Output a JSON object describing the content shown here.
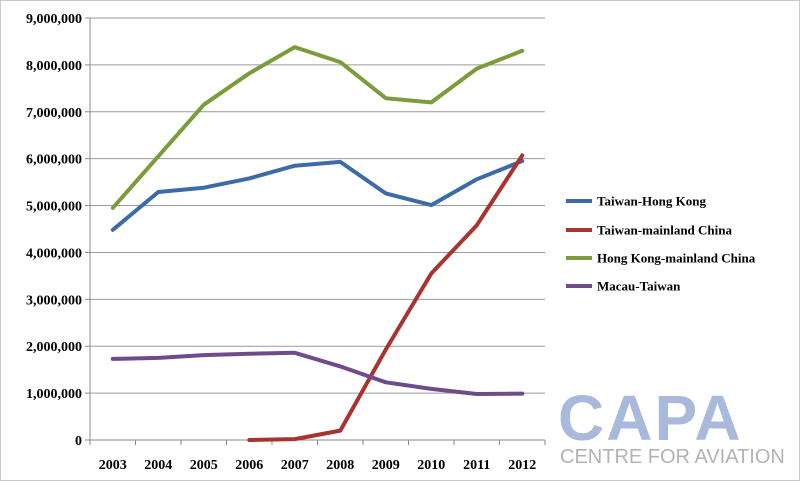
{
  "chart_data": {
    "type": "line",
    "title": "",
    "xlabel": "",
    "ylabel": "",
    "ylim": [
      0,
      9000000
    ],
    "y_ticks": [
      "0",
      "1,000,000",
      "2,000,000",
      "3,000,000",
      "4,000,000",
      "5,000,000",
      "6,000,000",
      "7,000,000",
      "8,000,000",
      "9,000,000"
    ],
    "y_tick_values": [
      0,
      1000000,
      2000000,
      3000000,
      4000000,
      5000000,
      6000000,
      7000000,
      8000000,
      9000000
    ],
    "categories": [
      "2003",
      "2004",
      "2005",
      "2006",
      "2007",
      "2008",
      "2009",
      "2010",
      "2011",
      "2012"
    ],
    "grid": true,
    "legend_position": "right",
    "series": [
      {
        "name": "Taiwan-Hong Kong",
        "color": "#3d6aa8",
        "values": [
          4480000,
          5290000,
          5380000,
          5580000,
          5850000,
          5930000,
          5260000,
          5010000,
          5560000,
          5950000
        ]
      },
      {
        "name": "Taiwan-mainland China",
        "color": "#a8332f",
        "values": [
          null,
          null,
          null,
          0,
          20000,
          200000,
          1930000,
          3550000,
          4580000,
          6070000
        ]
      },
      {
        "name": "Hong Kong-mainland China",
        "color": "#7c9c3c",
        "values": [
          4950000,
          6050000,
          7150000,
          7820000,
          8380000,
          8060000,
          7290000,
          7200000,
          7920000,
          8300000
        ]
      },
      {
        "name": "Macau-Taiwan",
        "color": "#6e4c8c",
        "values": [
          1730000,
          1750000,
          1810000,
          1840000,
          1860000,
          1570000,
          1230000,
          1090000,
          980000,
          990000
        ]
      }
    ]
  },
  "logo": {
    "main": "CAPA",
    "sub": "CENTRE FOR AVIATION",
    "main_color": "#a9b9dc",
    "sub_color": "#b3b3b3"
  }
}
